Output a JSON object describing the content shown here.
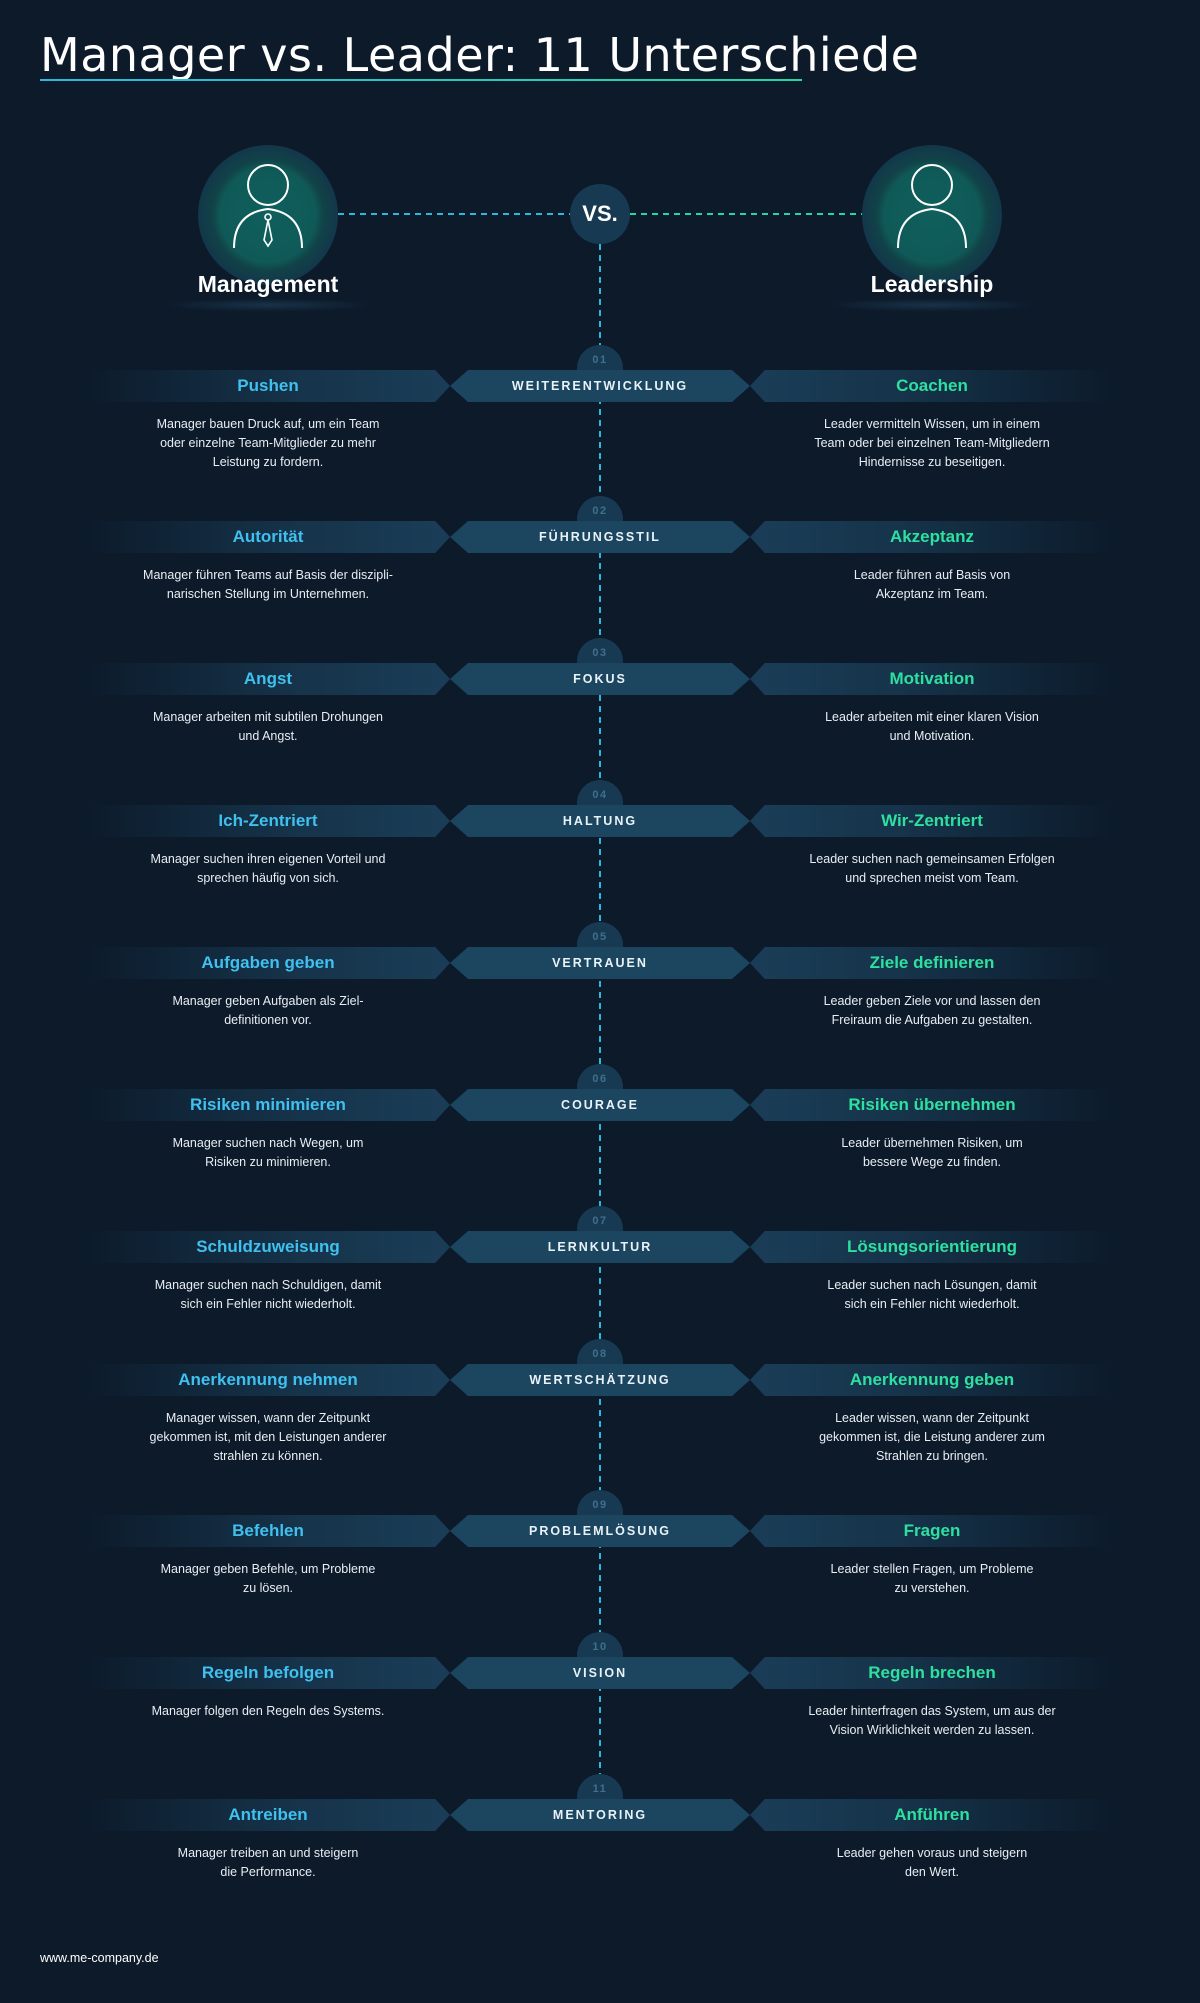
{
  "title": "Manager vs. Leader: 11 Unterschiede",
  "header": {
    "left_label": "Management",
    "right_label": "Leadership",
    "vs_label": "VS."
  },
  "colors": {
    "background": "#0c1a2a",
    "manager_accent": "#3fc0ef",
    "leader_accent": "#2ee0a0",
    "band": "#183a52"
  },
  "rows": [
    {
      "num": "01",
      "category": "WEITERENTWICKLUNG",
      "left_title": "Pushen",
      "left_text": [
        "Manager bauen Druck auf, um ein Team",
        "oder einzelne Team-Mitglieder zu mehr",
        "Leistung zu fordern."
      ],
      "right_title": "Coachen",
      "right_text": [
        "Leader vermitteln Wissen, um in einem",
        "Team oder bei einzelnen Team-Mitgliedern",
        "Hindernisse zu beseitigen."
      ]
    },
    {
      "num": "02",
      "category": "FÜHRUNGSSTIL",
      "left_title": "Autorität",
      "left_text": [
        "Manager führen Teams auf Basis der diszipli-",
        "narischen Stellung im Unternehmen."
      ],
      "right_title": "Akzeptanz",
      "right_text": [
        "Leader führen auf Basis von",
        "Akzeptanz im Team."
      ]
    },
    {
      "num": "03",
      "category": "FOKUS",
      "left_title": "Angst",
      "left_text": [
        "Manager arbeiten mit subtilen Drohungen",
        "und Angst."
      ],
      "right_title": "Motivation",
      "right_text": [
        "Leader arbeiten mit einer klaren Vision",
        "und Motivation."
      ]
    },
    {
      "num": "04",
      "category": "HALTUNG",
      "left_title": "Ich-Zentriert",
      "left_text": [
        "Manager suchen ihren eigenen Vorteil und",
        "sprechen häufig von sich."
      ],
      "right_title": "Wir-Zentriert",
      "right_text": [
        "Leader suchen nach gemeinsamen Erfolgen",
        "und sprechen meist vom Team."
      ]
    },
    {
      "num": "05",
      "category": "VERTRAUEN",
      "left_title": "Aufgaben geben",
      "left_text": [
        "Manager geben Aufgaben als Ziel-",
        "definitionen vor."
      ],
      "right_title": "Ziele definieren",
      "right_text": [
        "Leader geben Ziele vor und lassen den",
        "Freiraum die Aufgaben zu gestalten."
      ]
    },
    {
      "num": "06",
      "category": "COURAGE",
      "left_title": "Risiken minimieren",
      "left_text": [
        "Manager suchen nach Wegen, um",
        "Risiken zu minimieren."
      ],
      "right_title": "Risiken übernehmen",
      "right_text": [
        "Leader übernehmen Risiken, um",
        "bessere Wege zu finden."
      ]
    },
    {
      "num": "07",
      "category": "LERNKULTUR",
      "left_title": "Schuldzuweisung",
      "left_text": [
        "Manager suchen nach Schuldigen, damit",
        "sich ein Fehler nicht wiederholt."
      ],
      "right_title": "Lösungsorientierung",
      "right_text": [
        "Leader suchen nach Lösungen, damit",
        "sich ein Fehler nicht wiederholt."
      ]
    },
    {
      "num": "08",
      "category": "WERTSCHÄTZUNG",
      "left_title": "Anerkennung nehmen",
      "left_text": [
        "Manager wissen, wann der Zeitpunkt",
        "gekommen ist, mit den Leistungen anderer",
        "strahlen zu können."
      ],
      "right_title": "Anerkennung geben",
      "right_text": [
        "Leader wissen, wann der Zeitpunkt",
        "gekommen ist, die Leistung anderer zum",
        "Strahlen zu bringen."
      ]
    },
    {
      "num": "09",
      "category": "PROBLEMLÖSUNG",
      "left_title": "Befehlen",
      "left_text": [
        "Manager geben Befehle, um Probleme",
        "zu lösen."
      ],
      "right_title": "Fragen",
      "right_text": [
        "Leader stellen Fragen, um Probleme",
        "zu verstehen."
      ]
    },
    {
      "num": "10",
      "category": "VISION",
      "left_title": "Regeln befolgen",
      "left_text": [
        "Manager folgen den Regeln des Systems."
      ],
      "right_title": "Regeln brechen",
      "right_text": [
        "Leader hinterfragen das System, um aus der",
        "Vision Wirklichkeit werden zu lassen."
      ]
    },
    {
      "num": "11",
      "category": "MENTORING",
      "left_title": "Antreiben",
      "left_text": [
        "Manager treiben an und steigern",
        "die Performance."
      ],
      "right_title": "Anführen",
      "right_text": [
        "Leader gehen voraus und steigern",
        "den Wert."
      ]
    }
  ],
  "footer": "www.me-company.de"
}
